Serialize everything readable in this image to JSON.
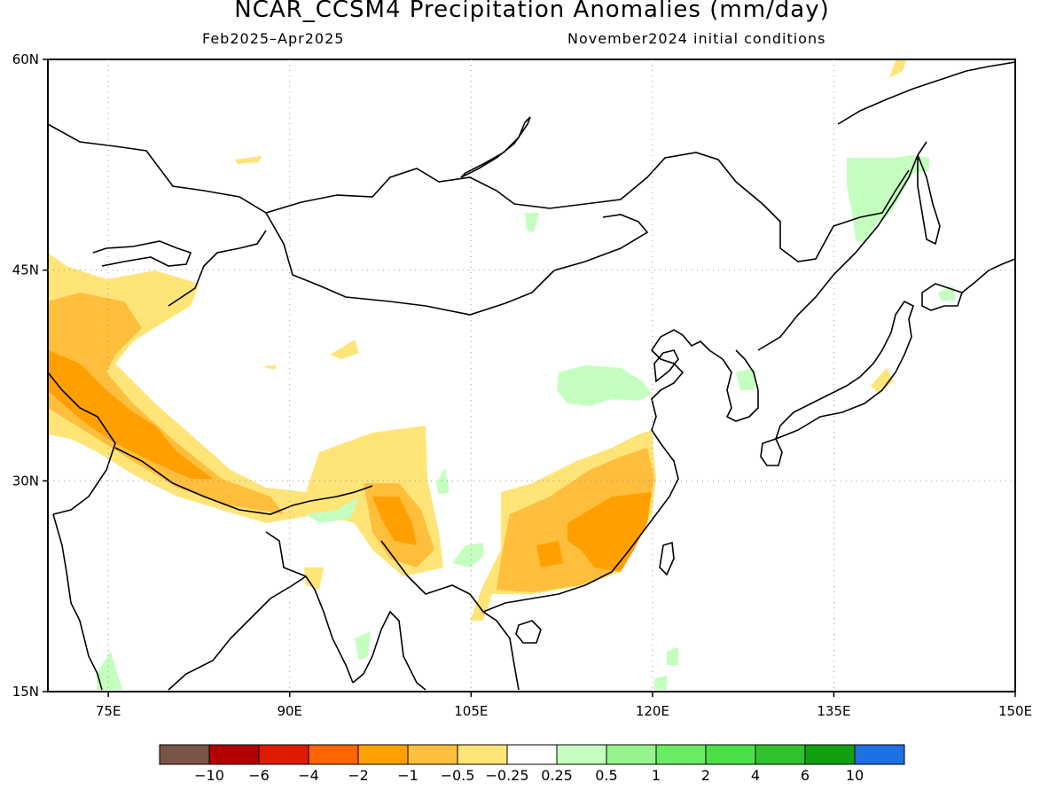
{
  "title": "NCAR_CCSM4 Precipitation Anomalies (mm/day)",
  "subtitle_left": "Feb2025–Apr2025",
  "subtitle_right": "November2024 initial conditions",
  "map": {
    "lon_range": [
      70,
      150
    ],
    "lat_range": [
      15,
      60
    ],
    "lat_ticks": [
      {
        "v": 60,
        "label": "60N"
      },
      {
        "v": 45,
        "label": "45N"
      },
      {
        "v": 30,
        "label": "30N"
      },
      {
        "v": 15,
        "label": "15N"
      }
    ],
    "lon_ticks": [
      {
        "v": 75,
        "label": "75E"
      },
      {
        "v": 90,
        "label": "90E"
      },
      {
        "v": 105,
        "label": "105E"
      },
      {
        "v": 120,
        "label": "120E"
      },
      {
        "v": 135,
        "label": "135E"
      },
      {
        "v": 150,
        "label": "150E"
      }
    ],
    "grid": "dotted"
  },
  "colorbar": {
    "colors": [
      "#7a5448",
      "#b40000",
      "#dd1c00",
      "#ff6400",
      "#ffa000",
      "#ffbe3c",
      "#ffe478",
      "#ffffff",
      "#c4ffc0",
      "#96f48c",
      "#6aeb64",
      "#4be046",
      "#30c22e",
      "#10a010",
      "#1f6fe5"
    ],
    "labels": [
      "−10",
      "−6",
      "−4",
      "−2",
      "−1",
      "−0.5",
      "−0.25",
      "0.25",
      "0.5",
      "1",
      "2",
      "4",
      "6",
      "10"
    ]
  }
}
